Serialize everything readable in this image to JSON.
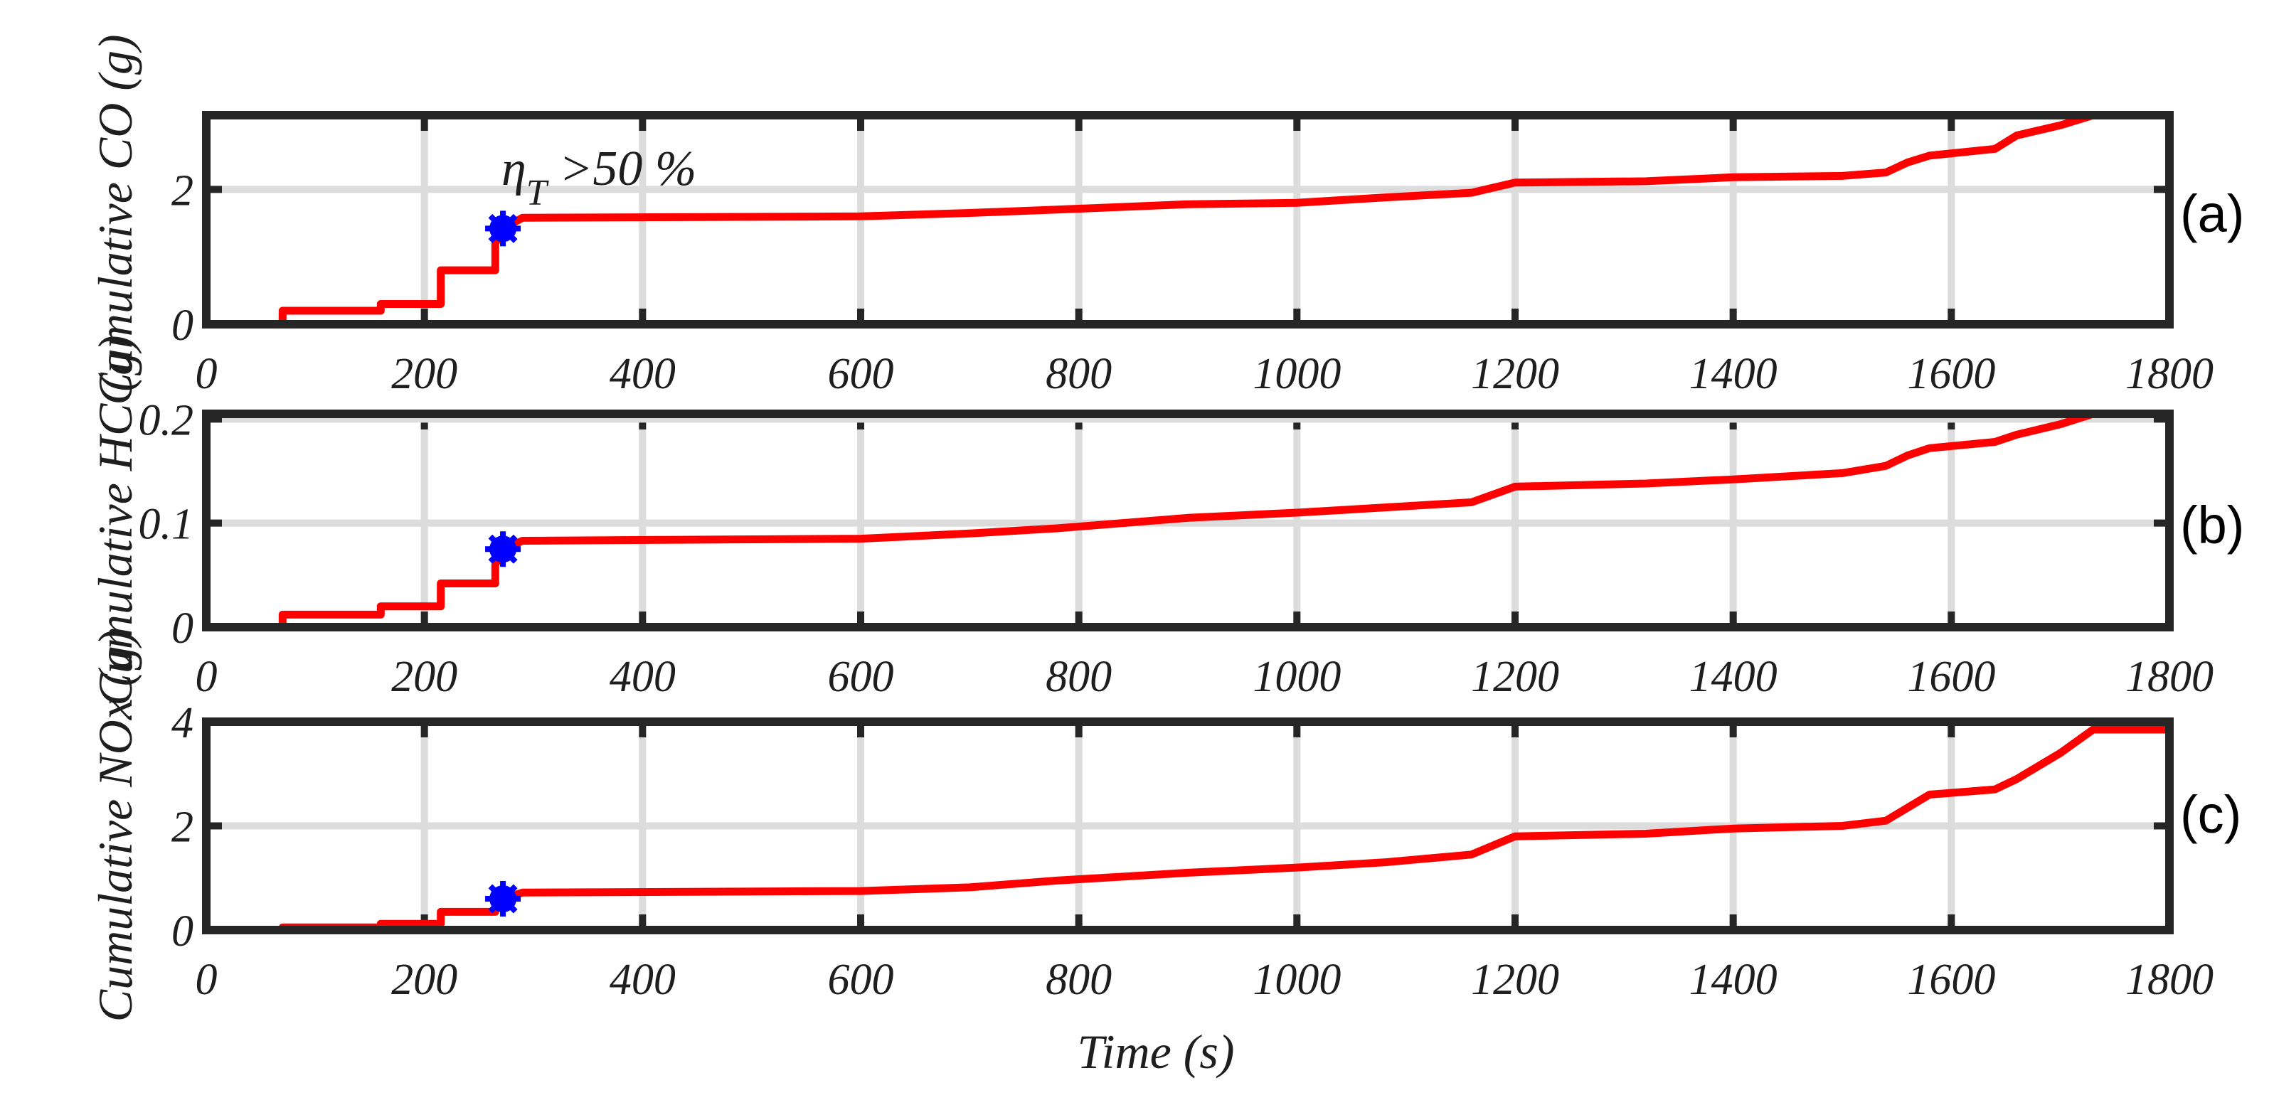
{
  "figure": {
    "xlabel": "Time (s)",
    "annotation": {
      "symbol": "η",
      "subscript": "T",
      "text": " >50 %",
      "panel": 0
    }
  },
  "colors": {
    "line": "#ff0000",
    "marker": "#0000ff",
    "grid": "#dcdcdc",
    "axes": "#262626",
    "text": "#1e1e1e"
  },
  "chart_data": [
    {
      "type": "line",
      "panel_label": "(a)",
      "ylabel": "Cumulative CO (g)",
      "xlim": [
        0,
        1800
      ],
      "ylim": [
        0,
        3.1
      ],
      "xticks": [
        0,
        200,
        400,
        600,
        800,
        1000,
        1200,
        1400,
        1600,
        1800
      ],
      "xtick_labels": [
        "0",
        "200",
        "400",
        "600",
        "800",
        "1000",
        "1200",
        "1400",
        "1600",
        "1800"
      ],
      "yticks": [
        0,
        2
      ],
      "ytick_labels": [
        "0",
        "2"
      ],
      "series": [
        {
          "name": "Cumulative CO",
          "x": [
            0,
            70,
            70,
            160,
            160,
            215,
            215,
            265,
            265,
            272,
            290,
            600,
            700,
            780,
            900,
            1000,
            1080,
            1160,
            1200,
            1320,
            1400,
            1500,
            1540,
            1560,
            1580,
            1640,
            1660,
            1700,
            1730,
            1800
          ],
          "y": [
            0,
            0,
            0.2,
            0.2,
            0.3,
            0.3,
            0.8,
            0.8,
            1.2,
            1.42,
            1.58,
            1.6,
            1.65,
            1.7,
            1.78,
            1.8,
            1.88,
            1.95,
            2.1,
            2.12,
            2.18,
            2.2,
            2.25,
            2.4,
            2.5,
            2.6,
            2.8,
            2.95,
            3.1,
            3.1
          ]
        }
      ],
      "marker": {
        "x": 272,
        "y": 1.42
      }
    },
    {
      "type": "line",
      "panel_label": "(b)",
      "ylabel": "Cumulative HC (g)",
      "xlim": [
        0,
        1800
      ],
      "ylim": [
        0,
        0.205
      ],
      "xticks": [
        0,
        200,
        400,
        600,
        800,
        1000,
        1200,
        1400,
        1600,
        1800
      ],
      "xtick_labels": [
        "0",
        "200",
        "400",
        "600",
        "800",
        "1000",
        "1200",
        "1400",
        "1600",
        "1800"
      ],
      "yticks": [
        0,
        0.1,
        0.2
      ],
      "ytick_labels": [
        "0",
        "0.1",
        "0.2"
      ],
      "series": [
        {
          "name": "Cumulative HC",
          "x": [
            0,
            70,
            70,
            160,
            160,
            215,
            215,
            265,
            265,
            272,
            290,
            600,
            700,
            780,
            900,
            1000,
            1080,
            1160,
            1200,
            1320,
            1400,
            1500,
            1540,
            1560,
            1580,
            1640,
            1660,
            1700,
            1730,
            1800
          ],
          "y": [
            0,
            0,
            0.012,
            0.012,
            0.02,
            0.02,
            0.042,
            0.042,
            0.06,
            0.075,
            0.083,
            0.085,
            0.09,
            0.095,
            0.105,
            0.11,
            0.115,
            0.12,
            0.135,
            0.138,
            0.142,
            0.148,
            0.155,
            0.165,
            0.172,
            0.178,
            0.185,
            0.195,
            0.205,
            0.205
          ]
        }
      ],
      "marker": {
        "x": 272,
        "y": 0.075
      }
    },
    {
      "type": "line",
      "panel_label": "(c)",
      "ylabel": "Cumulative NOx (g)",
      "xlim": [
        0,
        1800
      ],
      "ylim": [
        0,
        4
      ],
      "xticks": [
        0,
        200,
        400,
        600,
        800,
        1000,
        1200,
        1400,
        1600,
        1800
      ],
      "xtick_labels": [
        "0",
        "200",
        "400",
        "600",
        "800",
        "1000",
        "1200",
        "1400",
        "1600",
        "1800"
      ],
      "yticks": [
        0,
        2,
        4
      ],
      "ytick_labels": [
        "0",
        "2",
        "4"
      ],
      "series": [
        {
          "name": "Cumulative NOx",
          "x": [
            0,
            70,
            70,
            160,
            160,
            215,
            215,
            265,
            265,
            272,
            290,
            600,
            700,
            780,
            900,
            1000,
            1080,
            1160,
            1200,
            1320,
            1400,
            1500,
            1540,
            1560,
            1580,
            1640,
            1660,
            1700,
            1730,
            1800
          ],
          "y": [
            0,
            0,
            0.05,
            0.05,
            0.12,
            0.12,
            0.35,
            0.35,
            0.5,
            0.6,
            0.72,
            0.75,
            0.82,
            0.95,
            1.1,
            1.2,
            1.3,
            1.45,
            1.8,
            1.85,
            1.95,
            2.0,
            2.1,
            2.35,
            2.6,
            2.7,
            2.9,
            3.4,
            3.85,
            3.85
          ]
        }
      ],
      "marker": {
        "x": 272,
        "y": 0.6
      }
    }
  ]
}
